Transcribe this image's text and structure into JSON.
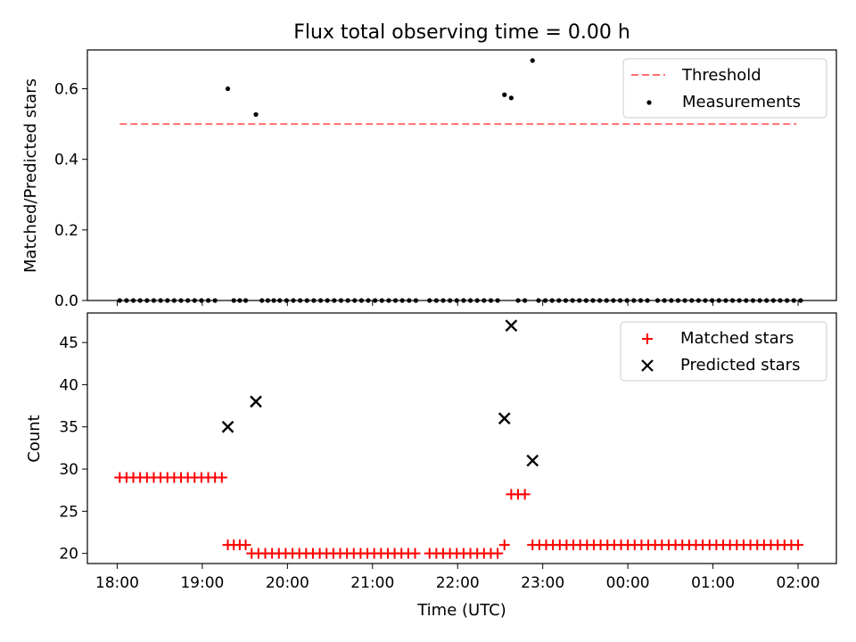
{
  "chart_data": [
    {
      "type": "scatter",
      "title": "Flux total observing time = 0.00 h",
      "xlabel": "",
      "ylabel": "Matched/Predicted stars",
      "xlim": [
        -0.35,
        8.45
      ],
      "ylim": [
        0,
        0.71
      ],
      "xticks": [
        "18:00",
        "19:00",
        "20:00",
        "21:00",
        "22:00",
        "23:00",
        "00:00",
        "01:00",
        "02:00"
      ],
      "yticks": [
        {
          "value": 0.0,
          "label": "0.0"
        },
        {
          "value": 0.2,
          "label": "0.2"
        },
        {
          "value": 0.4,
          "label": "0.4"
        },
        {
          "value": 0.6,
          "label": "0.6"
        }
      ],
      "legend_position": "top-right",
      "series": [
        {
          "name": "Threshold",
          "kind": "dashed-line",
          "color": "#ff7070",
          "x": [
            0.03,
            7.98
          ],
          "y": [
            0.5,
            0.5
          ]
        },
        {
          "name": "Measurements",
          "kind": "dot",
          "color": "#000000",
          "points": [
            [
              0.03,
              0
            ],
            [
              0.11,
              0
            ],
            [
              0.19,
              0
            ],
            [
              0.27,
              0
            ],
            [
              0.35,
              0
            ],
            [
              0.43,
              0
            ],
            [
              0.51,
              0
            ],
            [
              0.59,
              0
            ],
            [
              0.67,
              0
            ],
            [
              0.75,
              0
            ],
            [
              0.83,
              0
            ],
            [
              0.91,
              0
            ],
            [
              0.99,
              0
            ],
            [
              1.07,
              0
            ],
            [
              1.15,
              0
            ],
            [
              1.3,
              0.6
            ],
            [
              1.37,
              0
            ],
            [
              1.44,
              0
            ],
            [
              1.51,
              0
            ],
            [
              1.63,
              0.527
            ],
            [
              1.7,
              0
            ],
            [
              1.77,
              0
            ],
            [
              1.84,
              0
            ],
            [
              1.91,
              0
            ],
            [
              1.99,
              0
            ],
            [
              2.07,
              0
            ],
            [
              2.15,
              0
            ],
            [
              2.23,
              0
            ],
            [
              2.31,
              0
            ],
            [
              2.39,
              0
            ],
            [
              2.47,
              0
            ],
            [
              2.55,
              0
            ],
            [
              2.63,
              0
            ],
            [
              2.71,
              0
            ],
            [
              2.79,
              0
            ],
            [
              2.87,
              0
            ],
            [
              2.95,
              0
            ],
            [
              3.03,
              0
            ],
            [
              3.11,
              0
            ],
            [
              3.19,
              0
            ],
            [
              3.27,
              0
            ],
            [
              3.35,
              0
            ],
            [
              3.43,
              0
            ],
            [
              3.51,
              0
            ],
            [
              3.67,
              0
            ],
            [
              3.75,
              0
            ],
            [
              3.83,
              0
            ],
            [
              3.91,
              0
            ],
            [
              3.99,
              0
            ],
            [
              4.07,
              0
            ],
            [
              4.15,
              0
            ],
            [
              4.23,
              0
            ],
            [
              4.31,
              0
            ],
            [
              4.39,
              0
            ],
            [
              4.47,
              0
            ],
            [
              4.55,
              0.583
            ],
            [
              4.63,
              0.574
            ],
            [
              4.71,
              0
            ],
            [
              4.79,
              0
            ],
            [
              4.88,
              0.68
            ],
            [
              4.95,
              0
            ],
            [
              5.03,
              0
            ],
            [
              5.11,
              0
            ],
            [
              5.19,
              0
            ],
            [
              5.27,
              0
            ],
            [
              5.35,
              0
            ],
            [
              5.43,
              0
            ],
            [
              5.51,
              0
            ],
            [
              5.59,
              0
            ],
            [
              5.67,
              0
            ],
            [
              5.75,
              0
            ],
            [
              5.83,
              0
            ],
            [
              5.91,
              0
            ],
            [
              5.99,
              0
            ],
            [
              6.07,
              0
            ],
            [
              6.15,
              0
            ],
            [
              6.23,
              0
            ],
            [
              6.35,
              0
            ],
            [
              6.43,
              0
            ],
            [
              6.51,
              0
            ],
            [
              6.59,
              0
            ],
            [
              6.67,
              0
            ],
            [
              6.75,
              0
            ],
            [
              6.83,
              0
            ],
            [
              6.91,
              0
            ],
            [
              6.99,
              0
            ],
            [
              7.07,
              0
            ],
            [
              7.15,
              0
            ],
            [
              7.23,
              0
            ],
            [
              7.31,
              0
            ],
            [
              7.39,
              0
            ],
            [
              7.47,
              0
            ],
            [
              7.55,
              0
            ],
            [
              7.63,
              0
            ],
            [
              7.71,
              0
            ],
            [
              7.79,
              0
            ],
            [
              7.87,
              0
            ],
            [
              7.95,
              0
            ],
            [
              8.03,
              0
            ]
          ]
        }
      ]
    },
    {
      "type": "scatter",
      "title": "",
      "xlabel": "Time (UTC)",
      "ylabel": "Count",
      "xlim": [
        -0.35,
        8.45
      ],
      "ylim": [
        18.8,
        48.5
      ],
      "xticks": [
        "18:00",
        "19:00",
        "20:00",
        "21:00",
        "22:00",
        "23:00",
        "00:00",
        "01:00",
        "02:00"
      ],
      "yticks": [
        {
          "value": 20,
          "label": "20"
        },
        {
          "value": 25,
          "label": "25"
        },
        {
          "value": 30,
          "label": "30"
        },
        {
          "value": 35,
          "label": "35"
        },
        {
          "value": 40,
          "label": "40"
        },
        {
          "value": 45,
          "label": "45"
        }
      ],
      "legend_position": "top-right",
      "series": [
        {
          "name": "Matched stars",
          "kind": "plus",
          "color": "#ff0000",
          "points": [
            [
              0.03,
              29
            ],
            [
              0.11,
              29
            ],
            [
              0.19,
              29
            ],
            [
              0.27,
              29
            ],
            [
              0.35,
              29
            ],
            [
              0.43,
              29
            ],
            [
              0.51,
              29
            ],
            [
              0.59,
              29
            ],
            [
              0.67,
              29
            ],
            [
              0.75,
              29
            ],
            [
              0.83,
              29
            ],
            [
              0.91,
              29
            ],
            [
              0.99,
              29
            ],
            [
              1.07,
              29
            ],
            [
              1.15,
              29
            ],
            [
              1.23,
              29
            ],
            [
              1.3,
              21
            ],
            [
              1.37,
              21
            ],
            [
              1.44,
              21
            ],
            [
              1.51,
              21
            ],
            [
              1.58,
              20
            ],
            [
              1.66,
              20
            ],
            [
              1.74,
              20
            ],
            [
              1.82,
              20
            ],
            [
              1.9,
              20
            ],
            [
              1.98,
              20
            ],
            [
              2.06,
              20
            ],
            [
              2.14,
              20
            ],
            [
              2.22,
              20
            ],
            [
              2.3,
              20
            ],
            [
              2.38,
              20
            ],
            [
              2.46,
              20
            ],
            [
              2.54,
              20
            ],
            [
              2.62,
              20
            ],
            [
              2.7,
              20
            ],
            [
              2.78,
              20
            ],
            [
              2.86,
              20
            ],
            [
              2.94,
              20
            ],
            [
              3.02,
              20
            ],
            [
              3.1,
              20
            ],
            [
              3.18,
              20
            ],
            [
              3.26,
              20
            ],
            [
              3.34,
              20
            ],
            [
              3.42,
              20
            ],
            [
              3.5,
              20
            ],
            [
              3.67,
              20
            ],
            [
              3.75,
              20
            ],
            [
              3.83,
              20
            ],
            [
              3.91,
              20
            ],
            [
              3.99,
              20
            ],
            [
              4.07,
              20
            ],
            [
              4.15,
              20
            ],
            [
              4.23,
              20
            ],
            [
              4.31,
              20
            ],
            [
              4.39,
              20
            ],
            [
              4.47,
              20
            ],
            [
              4.55,
              21
            ],
            [
              4.63,
              27
            ],
            [
              4.71,
              27
            ],
            [
              4.79,
              27
            ],
            [
              4.88,
              21
            ],
            [
              4.96,
              21
            ],
            [
              5.04,
              21
            ],
            [
              5.12,
              21
            ],
            [
              5.2,
              21
            ],
            [
              5.28,
              21
            ],
            [
              5.36,
              21
            ],
            [
              5.44,
              21
            ],
            [
              5.52,
              21
            ],
            [
              5.6,
              21
            ],
            [
              5.68,
              21
            ],
            [
              5.76,
              21
            ],
            [
              5.84,
              21
            ],
            [
              5.92,
              21
            ],
            [
              6.0,
              21
            ],
            [
              6.08,
              21
            ],
            [
              6.16,
              21
            ],
            [
              6.24,
              21
            ],
            [
              6.32,
              21
            ],
            [
              6.4,
              21
            ],
            [
              6.48,
              21
            ],
            [
              6.56,
              21
            ],
            [
              6.64,
              21
            ],
            [
              6.72,
              21
            ],
            [
              6.8,
              21
            ],
            [
              6.88,
              21
            ],
            [
              6.96,
              21
            ],
            [
              7.04,
              21
            ],
            [
              7.12,
              21
            ],
            [
              7.2,
              21
            ],
            [
              7.28,
              21
            ],
            [
              7.36,
              21
            ],
            [
              7.44,
              21
            ],
            [
              7.52,
              21
            ],
            [
              7.6,
              21
            ],
            [
              7.68,
              21
            ],
            [
              7.76,
              21
            ],
            [
              7.84,
              21
            ],
            [
              7.92,
              21
            ],
            [
              8.0,
              21
            ]
          ]
        },
        {
          "name": "Predicted stars",
          "kind": "x",
          "color": "#000000",
          "points": [
            [
              1.3,
              35
            ],
            [
              1.63,
              38
            ],
            [
              4.55,
              36
            ],
            [
              4.63,
              47
            ],
            [
              4.88,
              31
            ]
          ]
        }
      ]
    }
  ]
}
